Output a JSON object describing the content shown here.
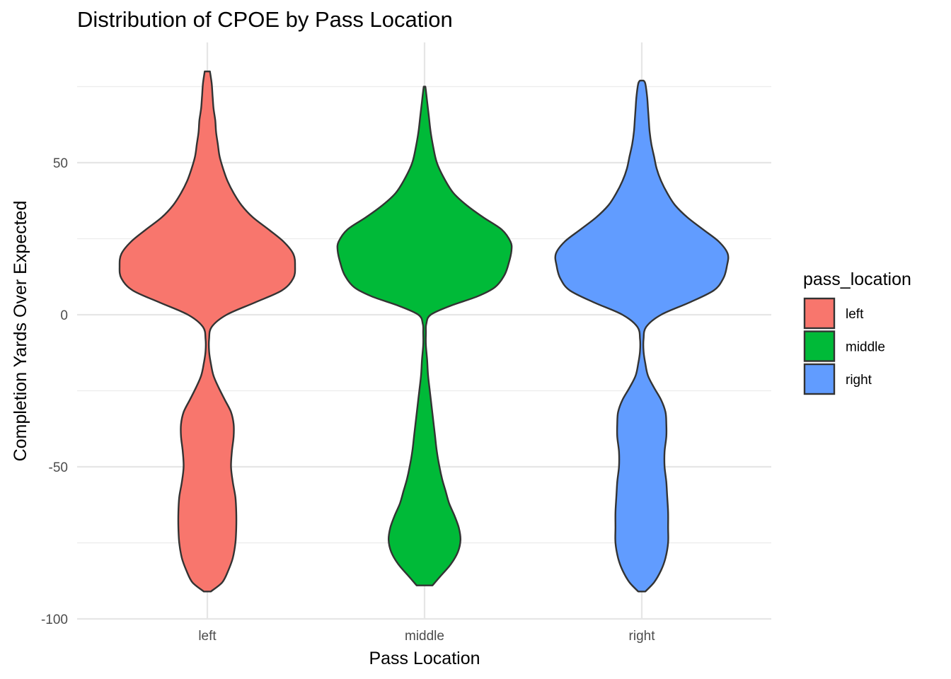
{
  "chart_data": {
    "type": "violin",
    "title": "Distribution of CPOE by Pass Location",
    "xlabel": "Pass Location",
    "ylabel": "Completion Yards Over Expected",
    "categories": [
      "left",
      "middle",
      "right"
    ],
    "ylim": [
      -100,
      80
    ],
    "yticks": [
      -100,
      -50,
      0,
      50
    ],
    "grid": true,
    "legend": {
      "title": "pass_location",
      "position": "right",
      "entries": [
        "left",
        "middle",
        "right"
      ]
    },
    "colors": {
      "left": "#F8766D",
      "middle": "#00BA38",
      "right": "#619CFF"
    },
    "series": [
      {
        "name": "left",
        "density": [
          [
            -91,
            0.04
          ],
          [
            -88,
            0.17
          ],
          [
            -84,
            0.24
          ],
          [
            -80,
            0.29
          ],
          [
            -75,
            0.32
          ],
          [
            -70,
            0.33
          ],
          [
            -65,
            0.33
          ],
          [
            -60,
            0.32
          ],
          [
            -55,
            0.29
          ],
          [
            -50,
            0.27
          ],
          [
            -45,
            0.28
          ],
          [
            -40,
            0.3
          ],
          [
            -36,
            0.3
          ],
          [
            -32,
            0.27
          ],
          [
            -28,
            0.2
          ],
          [
            -24,
            0.13
          ],
          [
            -20,
            0.07
          ],
          [
            -16,
            0.04
          ],
          [
            -12,
            0.02
          ],
          [
            -8,
            0.02
          ],
          [
            -4,
            0.05
          ],
          [
            0,
            0.22
          ],
          [
            4,
            0.54
          ],
          [
            8,
            0.85
          ],
          [
            12,
            0.98
          ],
          [
            16,
            1.0
          ],
          [
            20,
            0.98
          ],
          [
            24,
            0.87
          ],
          [
            28,
            0.7
          ],
          [
            32,
            0.52
          ],
          [
            36,
            0.39
          ],
          [
            40,
            0.3
          ],
          [
            44,
            0.23
          ],
          [
            48,
            0.18
          ],
          [
            52,
            0.14
          ],
          [
            56,
            0.12
          ],
          [
            60,
            0.1
          ],
          [
            64,
            0.09
          ],
          [
            68,
            0.07
          ],
          [
            72,
            0.06
          ],
          [
            76,
            0.05
          ],
          [
            80,
            0.03
          ]
        ]
      },
      {
        "name": "middle",
        "density": [
          [
            -89,
            0.09
          ],
          [
            -86,
            0.18
          ],
          [
            -82,
            0.3
          ],
          [
            -78,
            0.38
          ],
          [
            -74,
            0.41
          ],
          [
            -70,
            0.39
          ],
          [
            -66,
            0.34
          ],
          [
            -62,
            0.28
          ],
          [
            -58,
            0.24
          ],
          [
            -54,
            0.2
          ],
          [
            -50,
            0.17
          ],
          [
            -45,
            0.14
          ],
          [
            -40,
            0.12
          ],
          [
            -35,
            0.1
          ],
          [
            -30,
            0.08
          ],
          [
            -25,
            0.06
          ],
          [
            -20,
            0.04
          ],
          [
            -15,
            0.03
          ],
          [
            -10,
            0.015
          ],
          [
            -6,
            0.015
          ],
          [
            -3,
            0.02
          ],
          [
            0,
            0.07
          ],
          [
            3,
            0.3
          ],
          [
            6,
            0.6
          ],
          [
            9,
            0.8
          ],
          [
            13,
            0.91
          ],
          [
            17,
            0.96
          ],
          [
            21,
            0.99
          ],
          [
            24,
            0.98
          ],
          [
            28,
            0.88
          ],
          [
            32,
            0.67
          ],
          [
            36,
            0.48
          ],
          [
            40,
            0.33
          ],
          [
            45,
            0.22
          ],
          [
            50,
            0.14
          ],
          [
            55,
            0.1
          ],
          [
            60,
            0.07
          ],
          [
            65,
            0.05
          ],
          [
            70,
            0.03
          ],
          [
            75,
            0.01
          ]
        ]
      },
      {
        "name": "right",
        "density": [
          [
            -91,
            0.04
          ],
          [
            -88,
            0.14
          ],
          [
            -84,
            0.22
          ],
          [
            -80,
            0.27
          ],
          [
            -75,
            0.3
          ],
          [
            -70,
            0.3
          ],
          [
            -65,
            0.3
          ],
          [
            -60,
            0.29
          ],
          [
            -55,
            0.28
          ],
          [
            -50,
            0.26
          ],
          [
            -45,
            0.26
          ],
          [
            -40,
            0.28
          ],
          [
            -36,
            0.28
          ],
          [
            -32,
            0.27
          ],
          [
            -28,
            0.22
          ],
          [
            -24,
            0.14
          ],
          [
            -20,
            0.07
          ],
          [
            -16,
            0.04
          ],
          [
            -12,
            0.02
          ],
          [
            -8,
            0.02
          ],
          [
            -4,
            0.05
          ],
          [
            0,
            0.22
          ],
          [
            4,
            0.54
          ],
          [
            8,
            0.82
          ],
          [
            12,
            0.93
          ],
          [
            16,
            0.97
          ],
          [
            20,
            0.98
          ],
          [
            24,
            0.88
          ],
          [
            28,
            0.7
          ],
          [
            32,
            0.52
          ],
          [
            36,
            0.38
          ],
          [
            40,
            0.29
          ],
          [
            44,
            0.22
          ],
          [
            48,
            0.17
          ],
          [
            52,
            0.14
          ],
          [
            56,
            0.11
          ],
          [
            60,
            0.09
          ],
          [
            64,
            0.08
          ],
          [
            68,
            0.07
          ],
          [
            72,
            0.06
          ],
          [
            76,
            0.04
          ],
          [
            77,
            0.02
          ]
        ]
      }
    ]
  }
}
